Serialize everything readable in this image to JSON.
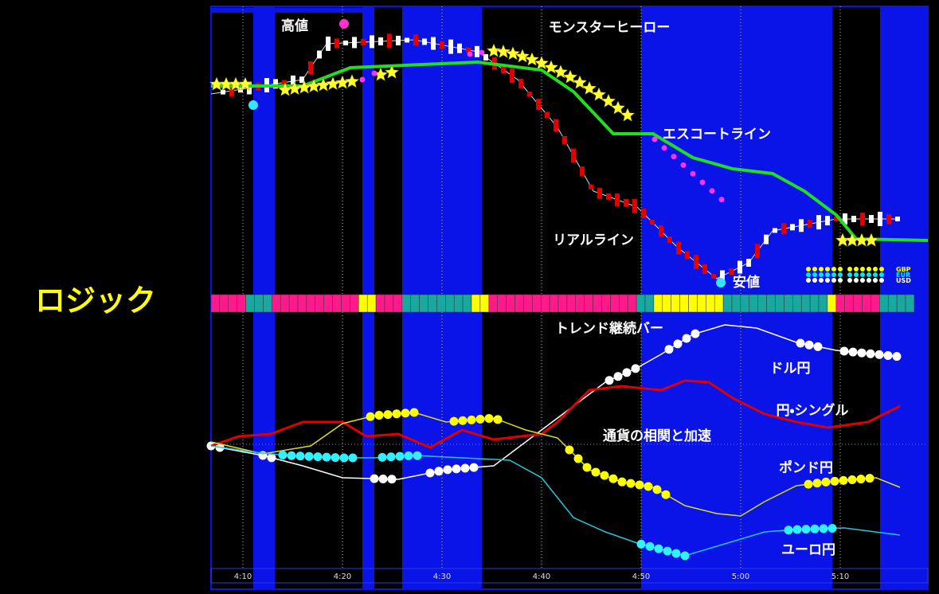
{
  "title": "ロジック",
  "annotations": {
    "high": "高値",
    "monster_hero": "モンスターヒーロー",
    "escort_line": "エスコートライン",
    "real_line": "リアルライン",
    "low": "安値",
    "trend_bar": "トレンド継続バー",
    "usdjpy": "ドル円",
    "yen_single": "円・シングル",
    "correlation": "通貨の相関と加速",
    "gbpjpy": "ポンド円",
    "eurjpy": "ユーロ円"
  },
  "legend": [
    "GBP",
    "EUR",
    "USD"
  ],
  "time_axis": [
    "4:10",
    "4:20",
    "4:30",
    "4:40",
    "4:50",
    "5:00",
    "5:10"
  ]
}
